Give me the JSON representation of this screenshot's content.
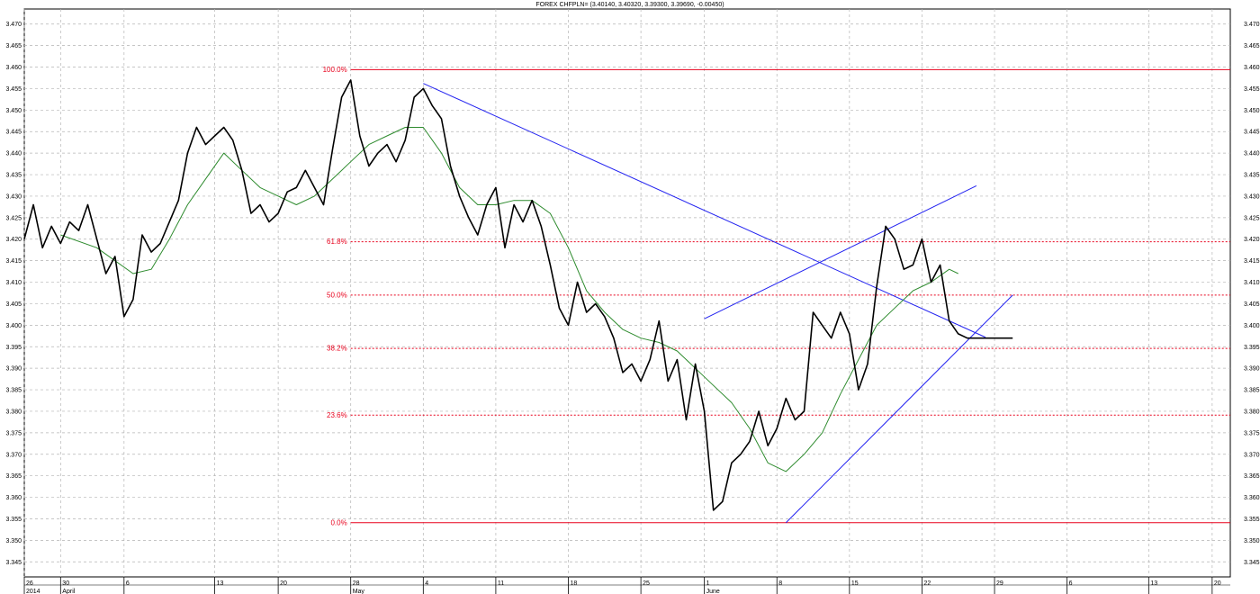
{
  "chart_data": {
    "type": "line",
    "title": "FOREX CHFPLN= (3.40140, 3.40320, 3.39300, 3.39690, -0.00450)",
    "y_ticks": [
      3.345,
      3.35,
      3.355,
      3.36,
      3.365,
      3.37,
      3.375,
      3.38,
      3.385,
      3.39,
      3.395,
      3.4,
      3.405,
      3.41,
      3.415,
      3.42,
      3.425,
      3.43,
      3.435,
      3.44,
      3.445,
      3.45,
      3.455,
      3.46,
      3.465,
      3.47
    ],
    "ylim": [
      3.3415,
      3.4735
    ],
    "xlim": [
      0,
      133
    ],
    "x_ticks": [
      {
        "x": 0,
        "day": "26",
        "month": "2014"
      },
      {
        "x": 4,
        "day": "30",
        "month": "April"
      },
      {
        "x": 11,
        "day": "6",
        "month": ""
      },
      {
        "x": 21,
        "day": "13",
        "month": ""
      },
      {
        "x": 28,
        "day": "20",
        "month": ""
      },
      {
        "x": 36,
        "day": "28",
        "month": "May"
      },
      {
        "x": 44,
        "day": "4",
        "month": ""
      },
      {
        "x": 52,
        "day": "11",
        "month": ""
      },
      {
        "x": 60,
        "day": "18",
        "month": ""
      },
      {
        "x": 68,
        "day": "25",
        "month": ""
      },
      {
        "x": 75,
        "day": "1",
        "month": "June"
      },
      {
        "x": 83,
        "day": "8",
        "month": ""
      },
      {
        "x": 91,
        "day": "15",
        "month": ""
      },
      {
        "x": 99,
        "day": "22",
        "month": ""
      },
      {
        "x": 107,
        "day": "29",
        "month": ""
      },
      {
        "x": 115,
        "day": "6",
        "month": ""
      },
      {
        "x": 124,
        "day": "13",
        "month": ""
      },
      {
        "x": 131,
        "day": "20",
        "month": ""
      }
    ],
    "series": [
      {
        "color": "#000000",
        "x": [
          0,
          1,
          2,
          3,
          4,
          5,
          6,
          7,
          8,
          9,
          10,
          11,
          12,
          13,
          14,
          15,
          16,
          17,
          18,
          19,
          20,
          21,
          22,
          23,
          24,
          25,
          26,
          27,
          28,
          29,
          30,
          31,
          32,
          33,
          34,
          35,
          36,
          37,
          38,
          39,
          40,
          41,
          42,
          43,
          44,
          45,
          46,
          47,
          48,
          49,
          50,
          51,
          52,
          53,
          54,
          55,
          56,
          57,
          58,
          59,
          60,
          61,
          62,
          63,
          64,
          65,
          66,
          67,
          68,
          69,
          70,
          71,
          72,
          73,
          74,
          75,
          76,
          77,
          78,
          79,
          80,
          81,
          82,
          83,
          84,
          85,
          86,
          87,
          88,
          89,
          90,
          91,
          92,
          93,
          94,
          95,
          96,
          97,
          98,
          99,
          100,
          101,
          102,
          103,
          104,
          105,
          106,
          107,
          108,
          109
        ],
        "values": [
          3.42,
          3.428,
          3.418,
          3.423,
          3.419,
          3.424,
          3.422,
          3.428,
          3.42,
          3.412,
          3.416,
          3.402,
          3.406,
          3.421,
          3.417,
          3.419,
          3.424,
          3.429,
          3.44,
          3.446,
          3.442,
          3.444,
          3.446,
          3.443,
          3.436,
          3.426,
          3.428,
          3.424,
          3.426,
          3.431,
          3.432,
          3.436,
          3.432,
          3.428,
          3.441,
          3.453,
          3.457,
          3.444,
          3.437,
          3.44,
          3.442,
          3.438,
          3.443,
          3.453,
          3.455,
          3.451,
          3.448,
          3.437,
          3.43,
          3.425,
          3.421,
          3.428,
          3.432,
          3.418,
          3.428,
          3.424,
          3.429,
          3.423,
          3.414,
          3.404,
          3.4,
          3.41,
          3.403,
          3.405,
          3.402,
          3.397,
          3.389,
          3.391,
          3.387,
          3.392,
          3.401,
          3.387,
          3.392,
          3.378,
          3.391,
          3.38,
          3.357,
          3.359,
          3.368,
          3.37,
          3.373,
          3.38,
          3.372,
          3.376,
          3.383,
          3.378,
          3.38,
          3.403,
          3.4,
          3.397,
          3.403,
          3.398,
          3.385,
          3.391,
          3.409,
          3.423,
          3.42,
          3.413,
          3.414,
          3.42,
          3.41,
          3.414,
          3.401,
          3.398,
          3.397,
          3.397,
          3.397,
          3.397,
          3.397,
          3.397
        ]
      },
      {
        "color": "#2e8b2e",
        "x": [
          4,
          8,
          12,
          14,
          16,
          18,
          20,
          22,
          24,
          26,
          28,
          30,
          32,
          34,
          36,
          38,
          40,
          42,
          44,
          46,
          48,
          50,
          52,
          54,
          56,
          58,
          60,
          62,
          64,
          66,
          68,
          70,
          72,
          74,
          76,
          78,
          80,
          82,
          84,
          86,
          88,
          90,
          92,
          94,
          96,
          98,
          100,
          102,
          103
        ],
        "values": [
          3.421,
          3.418,
          3.412,
          3.413,
          3.42,
          3.428,
          3.434,
          3.44,
          3.436,
          3.432,
          3.43,
          3.428,
          3.43,
          3.434,
          3.438,
          3.442,
          3.444,
          3.446,
          3.446,
          3.44,
          3.432,
          3.428,
          3.428,
          3.429,
          3.429,
          3.426,
          3.418,
          3.408,
          3.403,
          3.399,
          3.397,
          3.396,
          3.394,
          3.39,
          3.386,
          3.382,
          3.376,
          3.368,
          3.366,
          3.37,
          3.375,
          3.384,
          3.392,
          3.4,
          3.404,
          3.408,
          3.41,
          3.413,
          3.412
        ]
      }
    ],
    "fibonacci": [
      {
        "label": "100.0%",
        "value": 3.4594,
        "solid": true
      },
      {
        "label": "61.8%",
        "value": 3.4194
      },
      {
        "label": "50.0%",
        "value": 3.407
      },
      {
        "label": "38.2%",
        "value": 3.3946
      },
      {
        "label": "23.6%",
        "value": 3.3791
      },
      {
        "label": "0.0%",
        "value": 3.3541,
        "solid": true
      }
    ],
    "fib_x_start": 36,
    "trendlines": [
      {
        "x1": 44,
        "y1": 3.4562,
        "x2": 106,
        "y2": 3.3972
      },
      {
        "x1": 84,
        "y1": 3.3541,
        "x2": 109,
        "y2": 3.407
      },
      {
        "x1": 75,
        "y1": 3.4015,
        "x2": 105,
        "y2": 3.4324
      }
    ]
  }
}
